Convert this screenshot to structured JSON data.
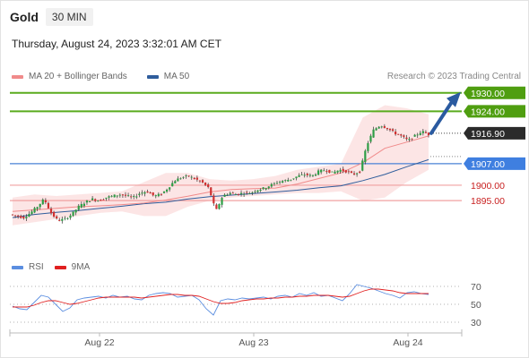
{
  "header": {
    "symbol": "Gold",
    "timeframe": "30 MIN"
  },
  "datetime": "Thursday, August 24, 2023 3:32:01 AM CET",
  "credit": "Research © 2023 Trading Central",
  "legend": [
    {
      "label": "MA 20 + Bollinger Bands",
      "color": "#f08a8a"
    },
    {
      "label": "MA 50",
      "color": "#2f5d9c"
    }
  ],
  "rsi_legend": [
    {
      "label": "RSI",
      "color": "#5b8ee0"
    },
    {
      "label": "9MA",
      "color": "#e02020"
    }
  ],
  "colors": {
    "up": "#2e9e46",
    "down": "#d03030",
    "arrow": "#2a5aa0"
  },
  "chart_data": {
    "type": "candlestick",
    "x_tick_labels": [
      "Aug 22",
      "Aug 23",
      "Aug 24"
    ],
    "y_range": [
      1884,
      1934
    ],
    "current_price": {
      "value": 1916.9,
      "label": "1916.90"
    },
    "levels": [
      {
        "value": 1930.0,
        "label": "1930.00",
        "kind": "resistance"
      },
      {
        "value": 1924.0,
        "label": "1924.00",
        "kind": "resistance"
      },
      {
        "value": 1907.0,
        "label": "1907.00",
        "kind": "pivot"
      },
      {
        "value": 1900.0,
        "label": "1900.00",
        "kind": "support"
      },
      {
        "value": 1895.0,
        "label": "1895.00",
        "kind": "support"
      }
    ],
    "forecast_arrow": {
      "from": 1916.9,
      "to": 1930.0
    },
    "price_path": [
      1890.5,
      1890,
      1889.5,
      1891,
      1893,
      1895.5,
      1891,
      1888.5,
      1889,
      1890.5,
      1893,
      1894.5,
      1895.5,
      1895,
      1896,
      1896.5,
      1897,
      1896.5,
      1896,
      1897.5,
      1898,
      1896.5,
      1897,
      1899,
      1901.5,
      1902.5,
      1903,
      1902,
      1901,
      1899,
      1891.5,
      1896.5,
      1897.5,
      1897,
      1897.5,
      1897.5,
      1898.5,
      1899,
      1900,
      1901,
      1901.5,
      1902,
      1903,
      1903.5,
      1903,
      1904.5,
      1905,
      1904,
      1905,
      1904.5,
      1903.5,
      1904.5,
      1913,
      1918,
      1919.5,
      1918.5,
      1917,
      1916,
      1914.5,
      1916,
      1917.5,
      1916.5
    ],
    "ma20": [
      1891.5,
      1892,
      1892.5,
      1893,
      1893.3,
      1893.7,
      1894.2,
      1895.2,
      1896.4,
      1897.8,
      1898.6,
      1898.9,
      1899.1,
      1900.4,
      1902.2,
      1904,
      1907.3,
      1912,
      1914,
      1916
    ],
    "bb_upper": [
      1896,
      1897,
      1896.5,
      1897,
      1897.5,
      1898,
      1901,
      1904,
      1904,
      1902,
      1901.5,
      1902,
      1903,
      1905,
      1906,
      1907,
      1922,
      1926,
      1925,
      1923
    ],
    "bb_lower": [
      1887,
      1888,
      1889,
      1890,
      1891,
      1891.5,
      1890,
      1890,
      1893,
      1895,
      1896,
      1896.5,
      1897,
      1897.5,
      1897.5,
      1898,
      1895,
      1896,
      1901,
      1905
    ],
    "ma50": [
      1889.5,
      1890.5,
      1891.2,
      1891.8,
      1892.5,
      1893.2,
      1894,
      1894.5,
      1895.5,
      1896.3,
      1896.8,
      1897.3,
      1897.8,
      1898.4,
      1899.2,
      1899.8,
      1901.5,
      1903.5,
      1906,
      1908.3
    ],
    "rsi": {
      "y_range": [
        20,
        80
      ],
      "reference_levels": [
        70,
        50,
        30
      ],
      "rsi_values": [
        48,
        45,
        44,
        52,
        60,
        58,
        50,
        42,
        46,
        55,
        57,
        58,
        59,
        57,
        60,
        58,
        59,
        56,
        55,
        60,
        62,
        63,
        62,
        58,
        59,
        60,
        55,
        45,
        38,
        54,
        56,
        55,
        57,
        56,
        57,
        58,
        56,
        59,
        60,
        58,
        62,
        60,
        63,
        59,
        60,
        57,
        54,
        62,
        72,
        70,
        68,
        65,
        62,
        60,
        57,
        63,
        64,
        62,
        61
      ],
      "ma9_values": [
        47,
        47,
        47,
        49,
        52,
        54,
        54,
        52,
        50,
        51,
        53,
        55,
        57,
        58,
        58,
        58,
        58,
        58,
        57,
        58,
        59,
        60,
        61,
        61,
        60,
        60,
        59,
        56,
        53,
        51,
        51,
        52,
        54,
        55,
        56,
        56,
        57,
        57,
        58,
        58,
        59,
        59,
        60,
        60,
        60,
        59,
        58,
        59,
        62,
        65,
        67,
        67,
        66,
        65,
        63,
        62,
        62,
        62,
        62
      ]
    }
  }
}
